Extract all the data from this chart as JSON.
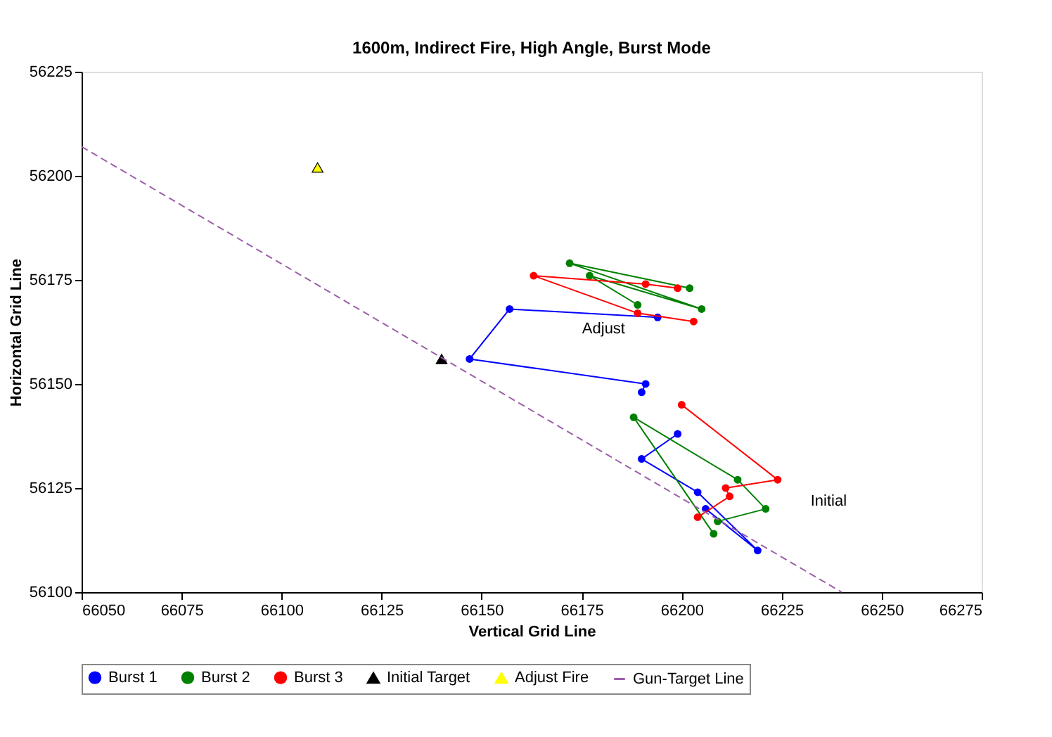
{
  "chart_data": {
    "type": "line",
    "title": "1600m, Indirect Fire, High Angle, Burst Mode",
    "xlabel": "Vertical Grid Line",
    "ylabel": "Horizontal Grid Line",
    "xlim": [
      66050,
      66275
    ],
    "xticks": [
      66050,
      66075,
      66100,
      66125,
      66150,
      66175,
      66200,
      66225,
      66250,
      66275
    ],
    "ylim": [
      56100,
      56225
    ],
    "yticks": [
      56100,
      56125,
      56150,
      56175,
      56200,
      56225
    ],
    "grid": false,
    "legend": "bottom",
    "line_style": "solid",
    "series": [
      {
        "name": "Burst 1",
        "color": "#0000ff",
        "marker": "circle",
        "x": [
          66199,
          66190,
          66204,
          66219,
          66206,
          null,
          66190,
          66191,
          66147,
          66157,
          66194
        ],
        "values": [
          56138,
          56132,
          56124,
          56110,
          56120,
          null,
          56148,
          56150,
          56156,
          56168,
          56166
        ]
      },
      {
        "name": "Burst 2",
        "color": "#008000",
        "marker": "circle",
        "x": [
          66208,
          66188,
          66214,
          66221,
          66209,
          null,
          66189,
          66177,
          66205,
          66172,
          66202
        ],
        "values": [
          56114,
          56142,
          56127,
          56120,
          56117,
          null,
          56169,
          56176,
          56168,
          56179,
          56173
        ]
      },
      {
        "name": "Burst 3",
        "color": "#ff0000",
        "marker": "circle",
        "x": [
          66200,
          66224,
          66211,
          66212,
          66204,
          null,
          66203,
          66189,
          66163,
          66191,
          66199
        ],
        "values": [
          56145,
          56127,
          56125,
          56123,
          56118,
          null,
          56165,
          56167,
          56176,
          56174,
          56173
        ]
      },
      {
        "name": "Initial Target",
        "type": "scatter",
        "color": "#000000",
        "marker": "triangle",
        "x": [
          66140
        ],
        "values": [
          56156
        ]
      },
      {
        "name": "Adjust Fire",
        "type": "scatter",
        "color": "#ffff00",
        "marker": "triangle",
        "x": [
          66109
        ],
        "values": [
          56202
        ]
      },
      {
        "name": "Gun-Target Line",
        "color": "#9c5fa8",
        "marker": "none",
        "line_style": "dashed",
        "x": [
          66050,
          66240
        ],
        "values": [
          56207,
          56100
        ]
      }
    ],
    "annotations": [
      "Adjust",
      "Initial"
    ]
  }
}
